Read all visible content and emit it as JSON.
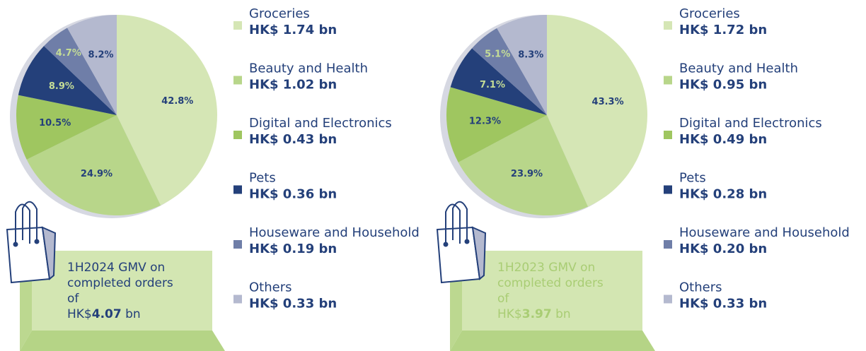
{
  "chart_data": [
    {
      "type": "pie",
      "categories": [
        "Groceries",
        "Beauty and Health",
        "Digital and Electronics",
        "Pets",
        "Houseware and Household",
        "Others"
      ],
      "values": [
        42.8,
        24.9,
        10.5,
        8.9,
        4.7,
        8.2
      ],
      "value_labels": [
        "42.8%",
        "24.9%",
        "10.5%",
        "8.9%",
        "4.7%",
        "8.2%"
      ],
      "legend_amounts": [
        "HK$ 1.74 bn",
        "HK$ 1.02 bn",
        "HK$ 0.43 bn",
        "HK$ 0.36 bn",
        "HK$ 0.19 bn",
        "HK$ 0.33 bn"
      ],
      "colors": [
        "#d5e6b5",
        "#b8d68a",
        "#9fc660",
        "#24407a",
        "#6f7ea8",
        "#b4b9cf"
      ],
      "gmv": {
        "text": "1H2024 GMV on completed orders of",
        "currency": "HK$",
        "amount": "4.07",
        "unit": "bn",
        "color": "#24407a"
      }
    },
    {
      "type": "pie",
      "categories": [
        "Groceries",
        "Beauty and Health",
        "Digital and Electronics",
        "Pets",
        "Houseware and Household",
        "Others"
      ],
      "values": [
        43.3,
        23.9,
        12.3,
        7.1,
        5.1,
        8.3
      ],
      "value_labels": [
        "43.3%",
        "23.9%",
        "12.3%",
        "7.1%",
        "5.1%",
        "8.3%"
      ],
      "legend_amounts": [
        "HK$ 1.72 bn",
        "HK$ 0.95 bn",
        "HK$ 0.49 bn",
        "HK$ 0.28 bn",
        "HK$ 0.20 bn",
        "HK$ 0.33 bn"
      ],
      "colors": [
        "#d5e6b5",
        "#b8d68a",
        "#9fc660",
        "#24407a",
        "#6f7ea8",
        "#b4b9cf"
      ],
      "gmv": {
        "text": "1H2023 GMV on completed orders of",
        "currency": "HK$",
        "amount": "3.97",
        "unit": "bn",
        "color": "#a9cd74"
      }
    }
  ]
}
